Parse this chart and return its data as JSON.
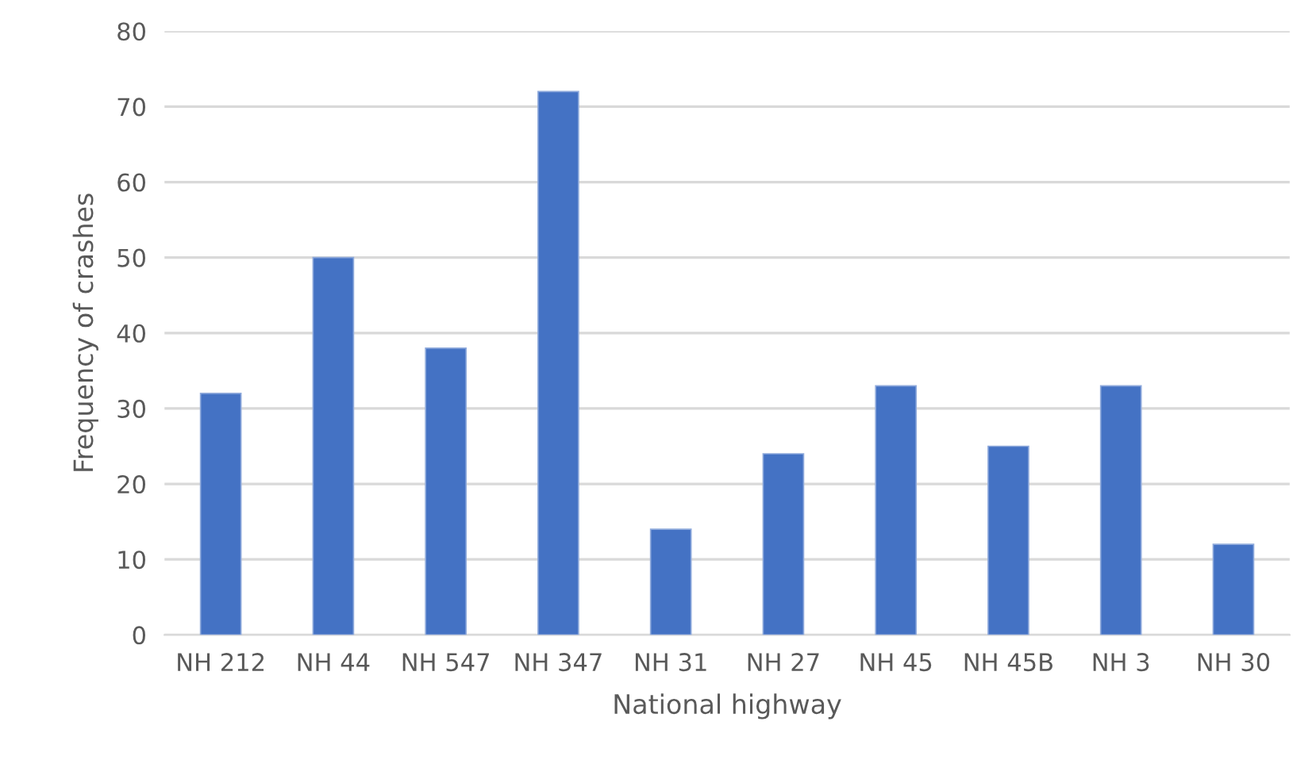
{
  "chart_data": {
    "type": "bar",
    "xlabel": "National highway",
    "ylabel": "Frequency of crashes",
    "categories": [
      "NH 212",
      "NH 44",
      "NH 547",
      "NH 347",
      "NH 31",
      "NH 27",
      "NH 45",
      "NH 45B",
      "NH 3",
      "NH 30"
    ],
    "values": [
      32,
      50,
      38,
      72,
      14,
      24,
      33,
      25,
      33,
      12
    ],
    "color": "#4472c4",
    "ylim": [
      0,
      80
    ],
    "yticks": [
      0,
      10,
      20,
      30,
      40,
      50,
      60,
      70,
      80
    ],
    "grid": "y",
    "legend": false
  }
}
